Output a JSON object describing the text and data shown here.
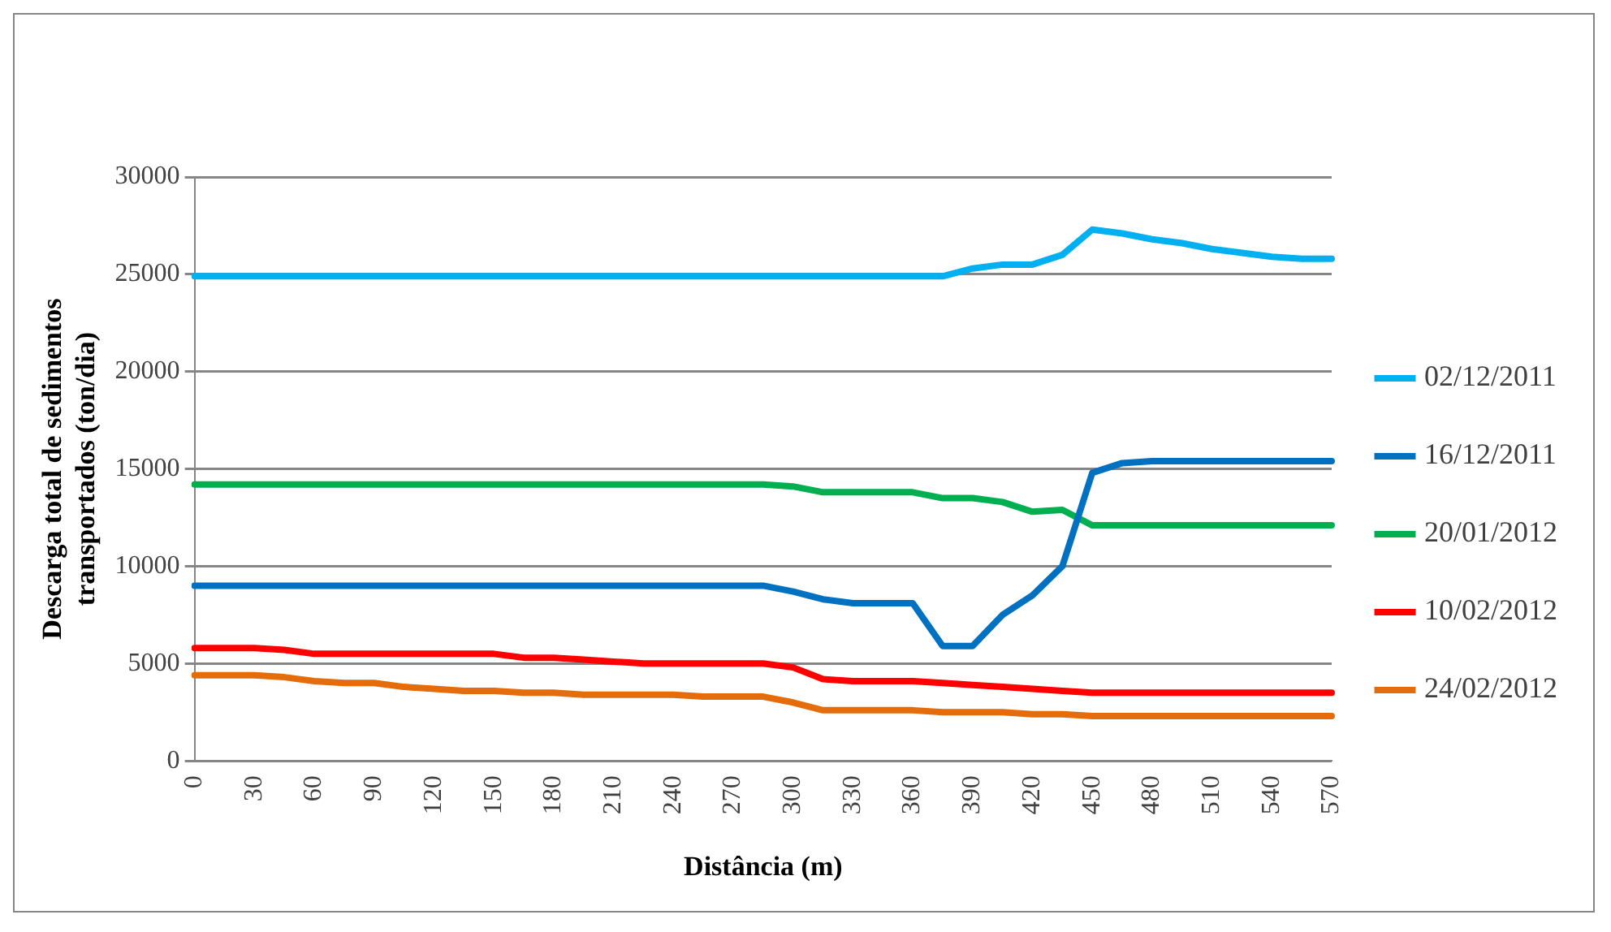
{
  "chart_data": {
    "type": "line",
    "xlabel": "Distância (m)",
    "ylabel": "Descarga total de sedimentos transportados (ton/dia)",
    "categories": [
      "0",
      null,
      "30",
      null,
      "60",
      null,
      "90",
      null,
      "120",
      null,
      "150",
      null,
      "180",
      null,
      "210",
      null,
      "240",
      null,
      "270",
      null,
      "300",
      null,
      "330",
      null,
      "360",
      null,
      "390",
      null,
      "420",
      null,
      "450",
      null,
      "480",
      null,
      "510",
      null,
      "540",
      null,
      "570"
    ],
    "ylim": [
      0,
      30000
    ],
    "yticks": [
      0,
      5000,
      10000,
      15000,
      20000,
      25000,
      30000
    ],
    "grid": "y",
    "legend": "right",
    "marker": "none",
    "line_style": "solid",
    "series": [
      {
        "name": "02/12/2011",
        "color": "#00b0f0",
        "values": [
          24900,
          24900,
          24900,
          24900,
          24900,
          24900,
          24900,
          24900,
          24900,
          24900,
          24900,
          24900,
          24900,
          24900,
          24900,
          24900,
          24900,
          24900,
          24900,
          24900,
          24900,
          24900,
          24900,
          24900,
          24900,
          24900,
          25300,
          25500,
          25500,
          26000,
          27300,
          27100,
          26800,
          26600,
          26300,
          26100,
          25900,
          25800,
          25800
        ]
      },
      {
        "name": "16/12/2011",
        "color": "#0070c0",
        "values": [
          9000,
          9000,
          9000,
          9000,
          9000,
          9000,
          9000,
          9000,
          9000,
          9000,
          9000,
          9000,
          9000,
          9000,
          9000,
          9000,
          9000,
          9000,
          9000,
          9000,
          8700,
          8300,
          8100,
          8100,
          8100,
          5900,
          5900,
          7500,
          8500,
          10000,
          14800,
          15300,
          15400,
          15400,
          15400,
          15400,
          15400,
          15400,
          15400
        ]
      },
      {
        "name": "20/01/2012",
        "color": "#00b050",
        "values": [
          14200,
          14200,
          14200,
          14200,
          14200,
          14200,
          14200,
          14200,
          14200,
          14200,
          14200,
          14200,
          14200,
          14200,
          14200,
          14200,
          14200,
          14200,
          14200,
          14200,
          14100,
          13800,
          13800,
          13800,
          13800,
          13500,
          13500,
          13300,
          12800,
          12900,
          12100,
          12100,
          12100,
          12100,
          12100,
          12100,
          12100,
          12100,
          12100
        ]
      },
      {
        "name": "10/02/2012",
        "color": "#ff0000",
        "values": [
          5800,
          5800,
          5800,
          5700,
          5500,
          5500,
          5500,
          5500,
          5500,
          5500,
          5500,
          5300,
          5300,
          5200,
          5100,
          5000,
          5000,
          5000,
          5000,
          5000,
          4800,
          4200,
          4100,
          4100,
          4100,
          4000,
          3900,
          3800,
          3700,
          3600,
          3500,
          3500,
          3500,
          3500,
          3500,
          3500,
          3500,
          3500,
          3500
        ]
      },
      {
        "name": "24/02/2012",
        "color": "#e46c0a",
        "values": [
          4400,
          4400,
          4400,
          4300,
          4100,
          4000,
          4000,
          3800,
          3700,
          3600,
          3600,
          3500,
          3500,
          3400,
          3400,
          3400,
          3400,
          3300,
          3300,
          3300,
          3000,
          2600,
          2600,
          2600,
          2600,
          2500,
          2500,
          2500,
          2400,
          2400,
          2300,
          2300,
          2300,
          2300,
          2300,
          2300,
          2300,
          2300,
          2300
        ]
      }
    ]
  }
}
